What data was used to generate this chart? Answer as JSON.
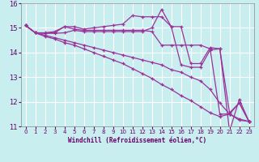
{
  "xlabel": "Windchill (Refroidissement éolien,°C)",
  "bg_color": "#c8eef0",
  "plot_bg_color": "#c8eef0",
  "line_color": "#993399",
  "grid_color": "#ffffff",
  "xlim": [
    -0.5,
    23.5
  ],
  "ylim": [
    11,
    16
  ],
  "yticks": [
    11,
    12,
    13,
    14,
    15,
    16
  ],
  "xticks": [
    0,
    1,
    2,
    3,
    4,
    5,
    6,
    7,
    8,
    9,
    10,
    11,
    12,
    13,
    14,
    15,
    16,
    17,
    18,
    19,
    20,
    21,
    22,
    23
  ],
  "lines": [
    {
      "x": [
        0,
        1,
        2,
        3,
        4,
        5,
        6,
        7,
        8,
        9,
        10,
        11,
        12,
        13,
        14,
        15,
        16,
        17,
        18,
        19,
        20,
        21,
        22,
        23
      ],
      "y": [
        15.1,
        14.8,
        14.8,
        14.85,
        15.05,
        15.05,
        14.95,
        15.0,
        15.05,
        15.1,
        15.15,
        15.5,
        15.45,
        15.45,
        15.45,
        15.05,
        15.05,
        13.55,
        13.55,
        14.2,
        14.15,
        11.55,
        11.95,
        11.2
      ]
    },
    {
      "x": [
        0,
        1,
        2,
        3,
        4,
        5,
        6,
        7,
        8,
        9,
        10,
        11,
        12,
        13,
        14,
        15,
        16,
        17,
        18,
        19,
        20,
        21,
        22,
        23
      ],
      "y": [
        15.1,
        14.8,
        14.78,
        14.8,
        15.05,
        14.95,
        14.9,
        14.9,
        14.9,
        14.9,
        14.9,
        14.9,
        14.9,
        14.85,
        14.3,
        14.3,
        14.3,
        14.3,
        14.3,
        14.15,
        11.5,
        11.5,
        11.95,
        11.2
      ]
    },
    {
      "x": [
        0,
        1,
        2,
        3,
        4,
        5,
        6,
        7,
        8,
        9,
        10,
        11,
        12,
        13,
        14,
        15,
        16,
        17,
        18,
        19,
        20,
        21,
        22,
        23
      ],
      "y": [
        15.1,
        14.8,
        14.78,
        14.78,
        14.8,
        14.9,
        14.85,
        14.85,
        14.85,
        14.85,
        14.85,
        14.85,
        14.85,
        15.0,
        15.75,
        15.05,
        13.5,
        13.4,
        13.4,
        14.1,
        14.15,
        10.8,
        12.1,
        11.2
      ]
    },
    {
      "x": [
        0,
        1,
        2,
        3,
        4,
        5,
        6,
        7,
        8,
        9,
        10,
        11,
        12,
        13,
        14,
        15,
        16,
        17,
        18,
        19,
        20,
        21,
        22,
        23
      ],
      "y": [
        15.1,
        14.8,
        14.7,
        14.6,
        14.5,
        14.4,
        14.3,
        14.2,
        14.1,
        14.0,
        13.9,
        13.8,
        13.7,
        13.6,
        13.5,
        13.3,
        13.2,
        13.0,
        12.85,
        12.5,
        11.95,
        11.5,
        11.3,
        11.2
      ]
    },
    {
      "x": [
        0,
        1,
        2,
        3,
        4,
        5,
        6,
        7,
        8,
        9,
        10,
        11,
        12,
        13,
        14,
        15,
        16,
        17,
        18,
        19,
        20,
        21,
        22,
        23
      ],
      "y": [
        15.1,
        14.8,
        14.65,
        14.55,
        14.4,
        14.3,
        14.15,
        14.0,
        13.85,
        13.7,
        13.55,
        13.35,
        13.15,
        12.95,
        12.7,
        12.5,
        12.25,
        12.05,
        11.8,
        11.55,
        11.4,
        11.5,
        11.25,
        11.2
      ]
    }
  ]
}
